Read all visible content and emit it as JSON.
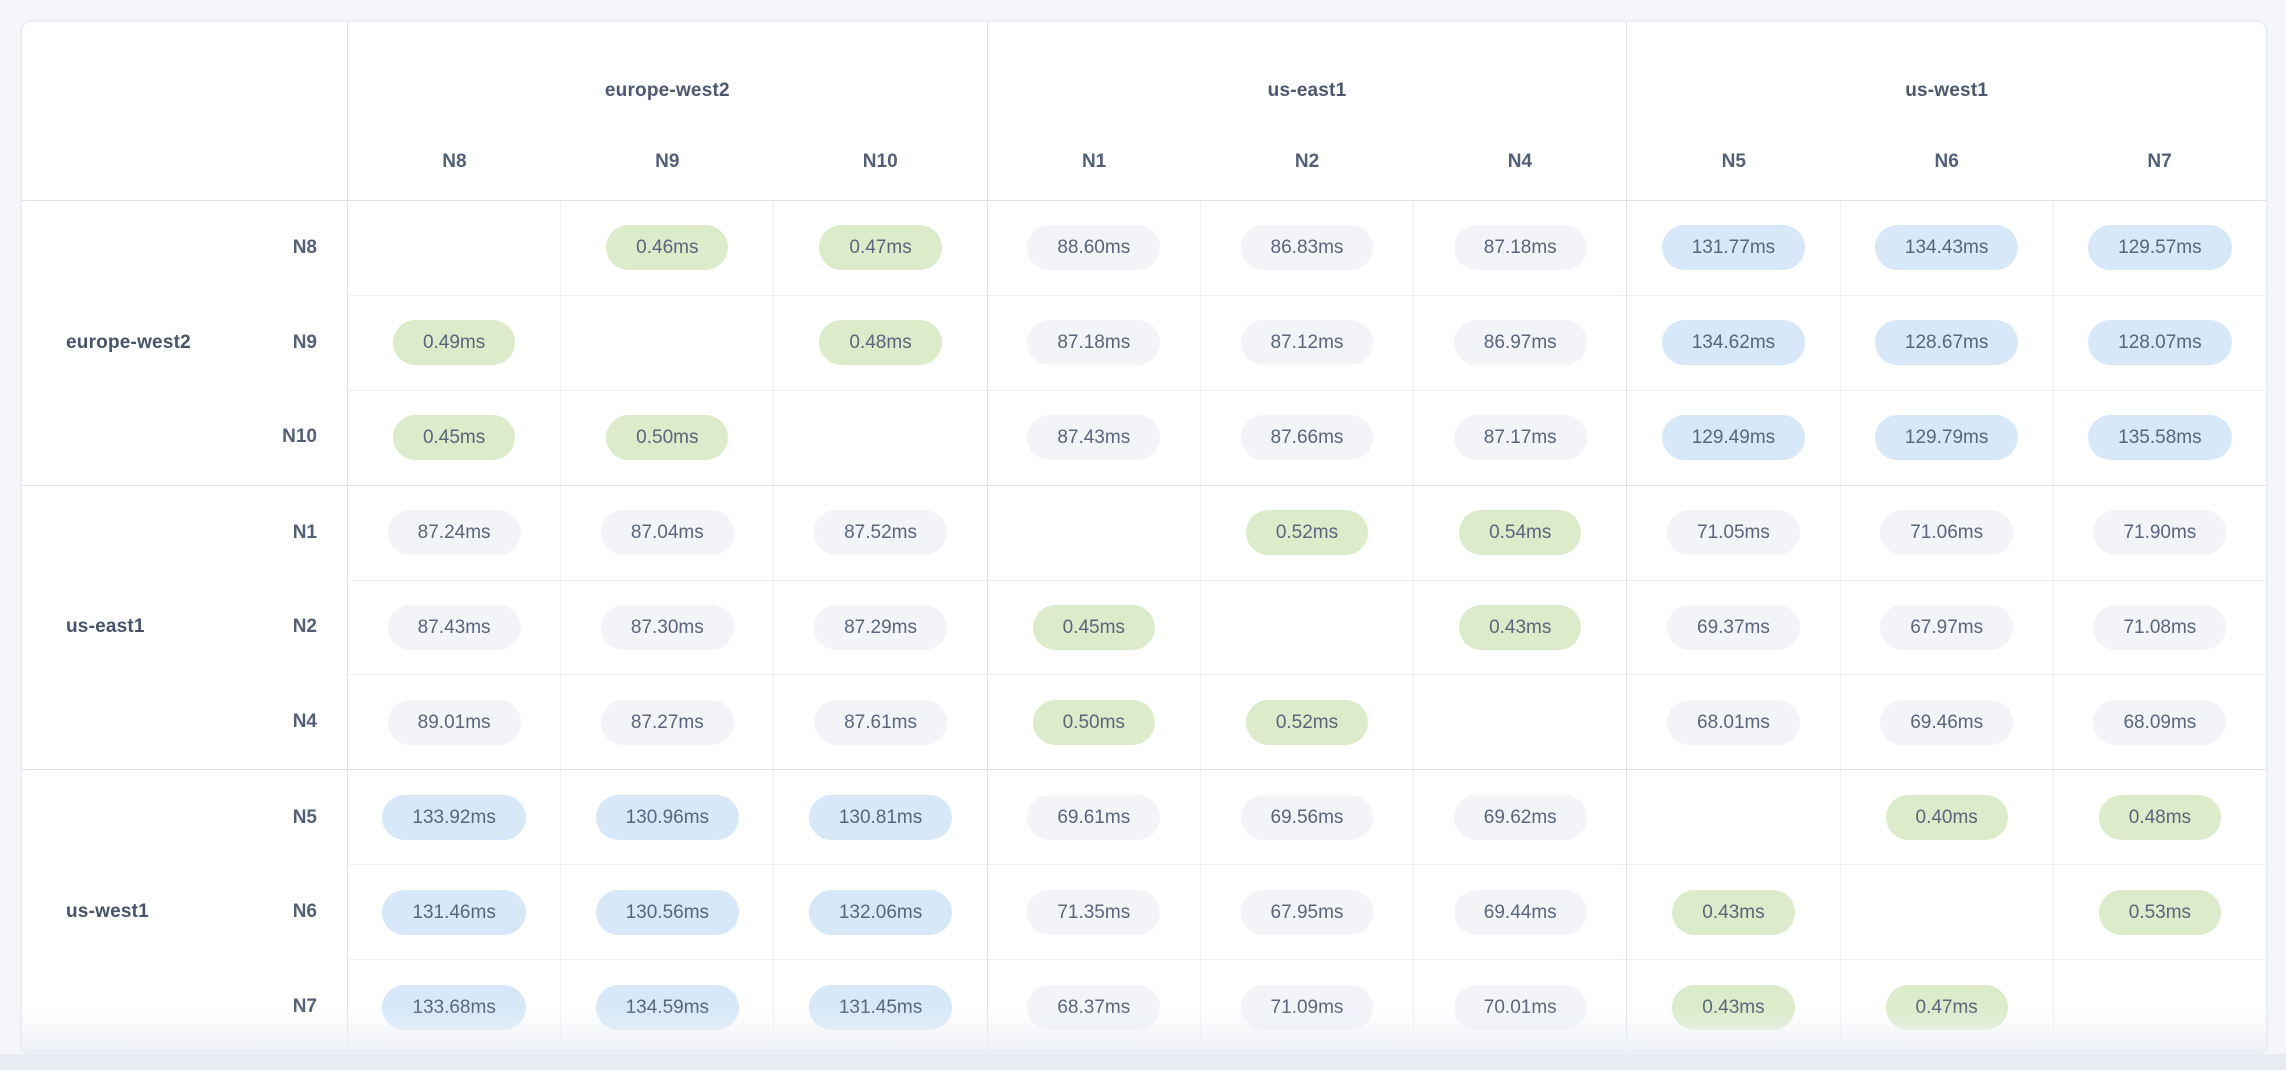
{
  "table": {
    "unit": "ms",
    "regions": [
      {
        "name": "europe-west2",
        "nodes": [
          "N8",
          "N9",
          "N10"
        ]
      },
      {
        "name": "us-east1",
        "nodes": [
          "N1",
          "N2",
          "N4"
        ]
      },
      {
        "name": "us-west1",
        "nodes": [
          "N5",
          "N6",
          "N7"
        ]
      }
    ],
    "node_order": [
      "N8",
      "N9",
      "N10",
      "N1",
      "N2",
      "N4",
      "N5",
      "N6",
      "N7"
    ],
    "latencies_ms": [
      [
        null,
        "0.46",
        "0.47",
        "88.60",
        "86.83",
        "87.18",
        "131.77",
        "134.43",
        "129.57"
      ],
      [
        "0.49",
        null,
        "0.48",
        "87.18",
        "87.12",
        "86.97",
        "134.62",
        "128.67",
        "128.07"
      ],
      [
        "0.45",
        "0.50",
        null,
        "87.43",
        "87.66",
        "87.17",
        "129.49",
        "129.79",
        "135.58"
      ],
      [
        "87.24",
        "87.04",
        "87.52",
        null,
        "0.52",
        "0.54",
        "71.05",
        "71.06",
        "71.90"
      ],
      [
        "87.43",
        "87.30",
        "87.29",
        "0.45",
        null,
        "0.43",
        "69.37",
        "67.97",
        "71.08"
      ],
      [
        "89.01",
        "87.27",
        "87.61",
        "0.50",
        "0.52",
        null,
        "68.01",
        "69.46",
        "68.09"
      ],
      [
        "133.92",
        "130.96",
        "130.81",
        "69.61",
        "69.56",
        "69.62",
        null,
        "0.40",
        "0.48"
      ],
      [
        "131.46",
        "130.56",
        "132.06",
        "71.35",
        "67.95",
        "69.44",
        "0.43",
        null,
        "0.53"
      ],
      [
        "133.68",
        "134.59",
        "131.45",
        "68.37",
        "71.09",
        "70.01",
        "0.43",
        "0.47",
        null
      ]
    ],
    "thresholds": {
      "low_max_ms": 1,
      "high_min_ms": 100
    },
    "colors": {
      "low_latency_pill": "#dcecca",
      "mid_latency_pill": "#f2f4f8",
      "high_latency_pill": "#d7e9f9",
      "label_text": "#47536b",
      "cell_text": "#59657c"
    }
  }
}
